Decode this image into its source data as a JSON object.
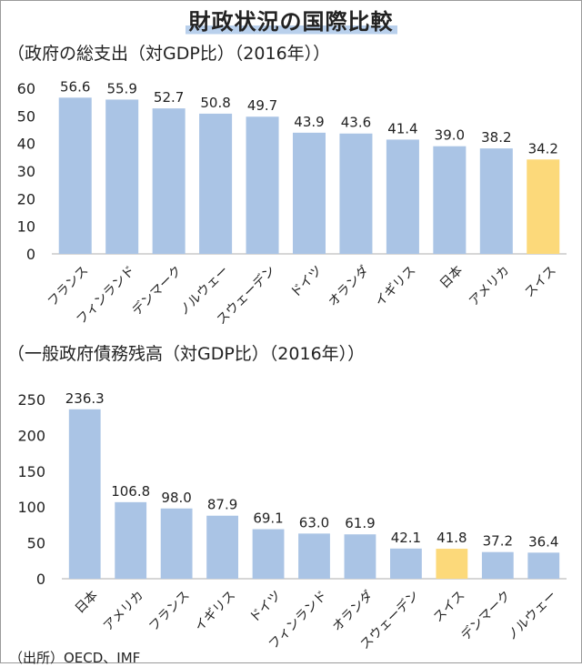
{
  "page_title": "財政状況の国際比較",
  "source_text": "（出所）OECD、IMF",
  "chart_data": [
    {
      "type": "bar",
      "title": "（政府の総支出（対GDP比）（2016年））",
      "categories": [
        "フランス",
        "フィンランド",
        "デンマーク",
        "ノルウェー",
        "スウェーデン",
        "ドイツ",
        "オランダ",
        "イギリス",
        "日本",
        "アメリカ",
        "スイス"
      ],
      "values": [
        56.6,
        55.9,
        52.7,
        50.8,
        49.7,
        43.9,
        43.6,
        41.4,
        39.0,
        38.2,
        34.2
      ],
      "value_labels": [
        "56.6",
        "55.9",
        "52.7",
        "50.8",
        "49.7",
        "43.9",
        "43.6",
        "41.4",
        "39.0",
        "38.2",
        "34.2"
      ],
      "highlight": "スイス",
      "ylim": [
        0,
        60
      ],
      "yticks": [
        0,
        10,
        20,
        30,
        40,
        50,
        60
      ],
      "xlabel": "",
      "ylabel": "",
      "grid": false,
      "bar_color": "#aac4e5",
      "highlight_color": "#fcd97a"
    },
    {
      "type": "bar",
      "title": "（一般政府債務残高（対GDP比）（2016年））",
      "categories": [
        "日本",
        "アメリカ",
        "フランス",
        "イギリス",
        "ドイツ",
        "フィンランド",
        "オランダ",
        "スウェーデン",
        "スイス",
        "デンマーク",
        "ノルウェー"
      ],
      "values": [
        236.3,
        106.8,
        98.0,
        87.9,
        69.1,
        63.0,
        61.9,
        42.1,
        41.8,
        37.2,
        36.4
      ],
      "value_labels": [
        "236.3",
        "106.8",
        "98.0",
        "87.9",
        "69.1",
        "63.0",
        "61.9",
        "42.1",
        "41.8",
        "37.2",
        "36.4"
      ],
      "highlight": "スイス",
      "ylim": [
        0,
        250
      ],
      "yticks": [
        0,
        50,
        100,
        150,
        200,
        250
      ],
      "xlabel": "",
      "ylabel": "",
      "grid": false,
      "bar_color": "#aac4e5",
      "highlight_color": "#fcd97a"
    }
  ]
}
